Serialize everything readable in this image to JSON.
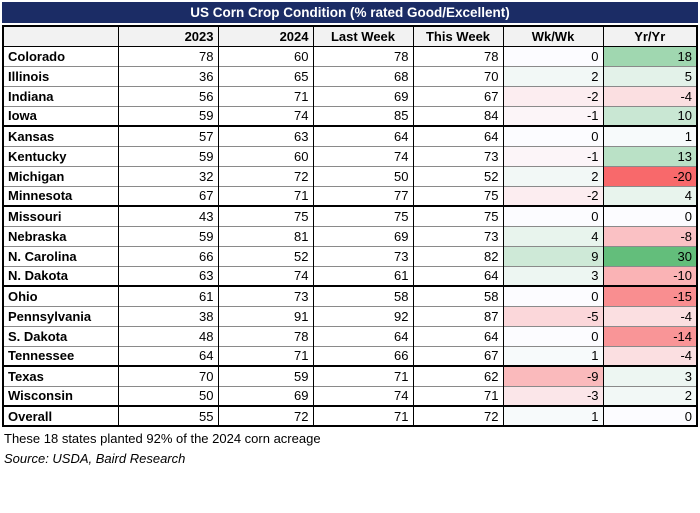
{
  "chart_data": {
    "type": "table",
    "title": "US Corn Crop Condition (% rated Good/Excellent)",
    "columns": [
      "",
      "2023",
      "2024",
      "Last Week",
      "This Week",
      "Wk/Wk",
      "Yr/Yr"
    ],
    "rows": [
      {
        "state": "Colorado",
        "y2023": 78,
        "y2024": 60,
        "last_week": 78,
        "this_week": 78,
        "wk_wk": 0,
        "yr_yr": 18
      },
      {
        "state": "Illinois",
        "y2023": 36,
        "y2024": 65,
        "last_week": 68,
        "this_week": 70,
        "wk_wk": 2,
        "yr_yr": 5
      },
      {
        "state": "Indiana",
        "y2023": 56,
        "y2024": 71,
        "last_week": 69,
        "this_week": 67,
        "wk_wk": -2,
        "yr_yr": -4
      },
      {
        "state": "Iowa",
        "y2023": 59,
        "y2024": 74,
        "last_week": 85,
        "this_week": 84,
        "wk_wk": -1,
        "yr_yr": 10
      },
      {
        "state": "Kansas",
        "y2023": 57,
        "y2024": 63,
        "last_week": 64,
        "this_week": 64,
        "wk_wk": 0,
        "yr_yr": 1
      },
      {
        "state": "Kentucky",
        "y2023": 59,
        "y2024": 60,
        "last_week": 74,
        "this_week": 73,
        "wk_wk": -1,
        "yr_yr": 13
      },
      {
        "state": "Michigan",
        "y2023": 32,
        "y2024": 72,
        "last_week": 50,
        "this_week": 52,
        "wk_wk": 2,
        "yr_yr": -20
      },
      {
        "state": "Minnesota",
        "y2023": 67,
        "y2024": 71,
        "last_week": 77,
        "this_week": 75,
        "wk_wk": -2,
        "yr_yr": 4
      },
      {
        "state": "Missouri",
        "y2023": 43,
        "y2024": 75,
        "last_week": 75,
        "this_week": 75,
        "wk_wk": 0,
        "yr_yr": 0
      },
      {
        "state": "Nebraska",
        "y2023": 59,
        "y2024": 81,
        "last_week": 69,
        "this_week": 73,
        "wk_wk": 4,
        "yr_yr": -8
      },
      {
        "state": "N. Carolina",
        "y2023": 66,
        "y2024": 52,
        "last_week": 73,
        "this_week": 82,
        "wk_wk": 9,
        "yr_yr": 30
      },
      {
        "state": "N. Dakota",
        "y2023": 63,
        "y2024": 74,
        "last_week": 61,
        "this_week": 64,
        "wk_wk": 3,
        "yr_yr": -10
      },
      {
        "state": "Ohio",
        "y2023": 61,
        "y2024": 73,
        "last_week": 58,
        "this_week": 58,
        "wk_wk": 0,
        "yr_yr": -15
      },
      {
        "state": "Pennsylvania",
        "y2023": 38,
        "y2024": 91,
        "last_week": 92,
        "this_week": 87,
        "wk_wk": -5,
        "yr_yr": -4
      },
      {
        "state": "S. Dakota",
        "y2023": 48,
        "y2024": 78,
        "last_week": 64,
        "this_week": 64,
        "wk_wk": 0,
        "yr_yr": -14
      },
      {
        "state": "Tennessee",
        "y2023": 64,
        "y2024": 71,
        "last_week": 66,
        "this_week": 67,
        "wk_wk": 1,
        "yr_yr": -4
      },
      {
        "state": "Texas",
        "y2023": 70,
        "y2024": 59,
        "last_week": 71,
        "this_week": 62,
        "wk_wk": -9,
        "yr_yr": 3
      },
      {
        "state": "Wisconsin",
        "y2023": 50,
        "y2024": 69,
        "last_week": 74,
        "this_week": 71,
        "wk_wk": -3,
        "yr_yr": 2
      },
      {
        "state": "Overall",
        "y2023": 55,
        "y2024": 72,
        "last_week": 71,
        "this_week": 72,
        "wk_wk": 1,
        "yr_yr": 0
      }
    ],
    "group_breaks_after": [
      "Iowa",
      "Minnesota",
      "N. Dakota",
      "Tennessee",
      "Wisconsin"
    ],
    "heat_scale": {
      "min": -20,
      "mid": 0,
      "max": 30,
      "min_color": "#F8696B",
      "mid_color": "#FCFCFF",
      "max_color": "#63BE7B",
      "applies_to": [
        "wk_wk",
        "yr_yr"
      ]
    },
    "footnote": "These 18 states planted 92% of the 2024 corn acreage",
    "source": "Source: USDA, Baird Research",
    "layout": {
      "title_bg": "#1b2c65",
      "title_text_color": "#ffffff",
      "header_bg": "#f2f2f2",
      "grid": "on",
      "legend": "none"
    }
  }
}
